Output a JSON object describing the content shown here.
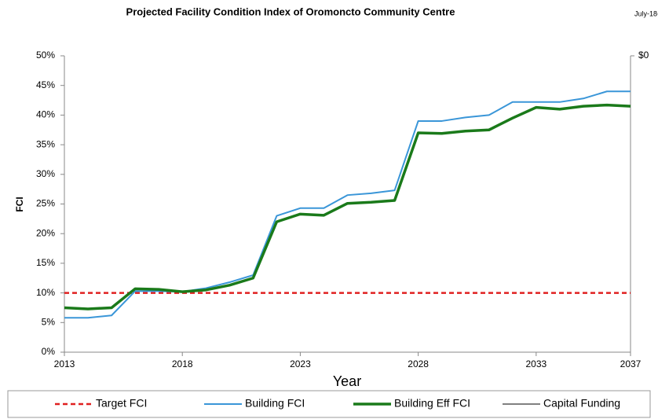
{
  "chart_data": {
    "type": "line",
    "title": "Projected Facility Condition Index of Oromoncto Community Centre",
    "date": "July-18-",
    "x_label": "Year",
    "y_label": "FCI",
    "x": [
      2013,
      2014,
      2015,
      2016,
      2017,
      2018,
      2019,
      2020,
      2021,
      2022,
      2023,
      2024,
      2025,
      2026,
      2027,
      2028,
      2029,
      2030,
      2031,
      2032,
      2033,
      2034,
      2035,
      2036,
      2037
    ],
    "xlim": [
      2013,
      2037
    ],
    "xticks": [
      2013,
      2018,
      2023,
      2028,
      2033,
      2037
    ],
    "ylim": [
      0,
      50
    ],
    "yticks": [
      {
        "value": 0,
        "label": "0%"
      },
      {
        "value": 5,
        "label": "5%"
      },
      {
        "value": 10,
        "label": "10%"
      },
      {
        "value": 15,
        "label": "15%"
      },
      {
        "value": 20,
        "label": "20%"
      },
      {
        "value": 25,
        "label": "25%"
      },
      {
        "value": 30,
        "label": "30%"
      },
      {
        "value": 35,
        "label": "35%"
      },
      {
        "value": 40,
        "label": "40%"
      },
      {
        "value": 45,
        "label": "45%"
      },
      {
        "value": 50,
        "label": "50%"
      }
    ],
    "y2ticks": [
      {
        "value": 0,
        "label": "$0"
      }
    ],
    "grid": false,
    "legend": "bottom",
    "series": [
      {
        "name": "Target FCI",
        "color": "#e02020",
        "dash": true,
        "values": [
          10,
          10,
          10,
          10,
          10,
          10,
          10,
          10,
          10,
          10,
          10,
          10,
          10,
          10,
          10,
          10,
          10,
          10,
          10,
          10,
          10,
          10,
          10,
          10,
          10
        ]
      },
      {
        "name": "Building FCI",
        "color": "#3a96d8",
        "values": [
          5.8,
          5.8,
          6.2,
          10.3,
          10.3,
          10.2,
          10.8,
          11.8,
          13.0,
          23.0,
          24.3,
          24.3,
          26.5,
          26.8,
          27.3,
          39.0,
          39.0,
          39.6,
          40.0,
          42.2,
          42.2,
          42.2,
          42.8,
          44.0,
          44.0
        ]
      },
      {
        "name": "Building Eff FCI",
        "color": "#1a7a1a",
        "values": [
          7.5,
          7.3,
          7.5,
          10.7,
          10.6,
          10.2,
          10.5,
          11.3,
          12.5,
          22.0,
          23.3,
          23.1,
          25.1,
          25.3,
          25.6,
          37.0,
          36.9,
          37.3,
          37.5,
          39.5,
          41.3,
          41.0,
          41.5,
          41.7,
          41.5
        ]
      },
      {
        "name": "Capital Funding",
        "color": "#000000",
        "axis": "y2",
        "values": [
          null,
          null,
          null,
          null,
          null,
          null,
          null,
          null,
          null,
          null,
          null,
          null,
          null,
          null,
          null,
          null,
          null,
          null,
          null,
          null,
          null,
          null,
          null,
          null,
          null
        ]
      }
    ]
  }
}
